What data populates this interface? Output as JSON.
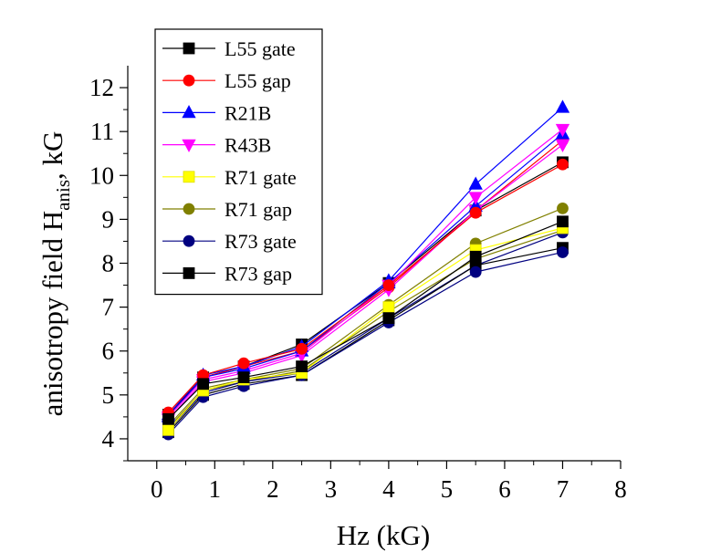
{
  "chart_data": {
    "type": "line",
    "xlabel": "Hz (kG)",
    "ylabel": {
      "main": "anisotropy field H",
      "sub": "anis",
      "suffix": ", kG"
    },
    "xlim": [
      -0.5,
      8
    ],
    "ylim": [
      3.5,
      12.5
    ],
    "xticks": [
      "0",
      "1",
      "2",
      "3",
      "4",
      "5",
      "6",
      "7",
      "8"
    ],
    "yticks": [
      "4",
      "5",
      "6",
      "7",
      "8",
      "9",
      "10",
      "11",
      "12"
    ],
    "grid": false,
    "legend_position": "top-left",
    "x": [
      0.2,
      0.8,
      1.5,
      2.5,
      4.0,
      5.5,
      7.0
    ],
    "series": [
      {
        "name": "L55 gate",
        "color": "#000000",
        "marker": "square",
        "values": [
          4.45,
          5.25,
          5.4,
          5.65,
          6.75,
          8.15,
          8.95
        ]
      },
      {
        "name": "L55 gap",
        "color": "#ff0000",
        "marker": "circle",
        "values": [
          4.6,
          5.45,
          5.72,
          6.05,
          7.5,
          9.15,
          10.25
        ]
      },
      {
        "name": "R21B",
        "color": "#0000ff",
        "marker": "triangle-up",
        "values": [
          4.55,
          5.45,
          5.65,
          6.1,
          7.6,
          9.8,
          11.55
        ]
      },
      {
        "name": "R43B",
        "color": "#ff00ff",
        "marker": "triangle-down",
        "values": [
          4.5,
          5.35,
          5.55,
          5.95,
          7.5,
          9.5,
          11.05
        ]
      },
      {
        "name": "R71 gate",
        "color": "#ffff00",
        "marker": "square",
        "values": [
          4.2,
          5.1,
          5.35,
          5.5,
          7.0,
          8.3,
          8.8
        ]
      },
      {
        "name": "R71 gap",
        "color": "#808000",
        "marker": "circle",
        "values": [
          4.3,
          5.15,
          5.35,
          5.6,
          7.05,
          8.45,
          9.25
        ]
      },
      {
        "name": "R73 gate",
        "color": "#000080",
        "marker": "circle",
        "values": [
          4.1,
          4.95,
          5.2,
          5.45,
          6.65,
          7.8,
          8.25
        ]
      },
      {
        "name": "R73 gap",
        "color": "#000000",
        "marker": "square",
        "values": [
          4.15,
          5.0,
          5.25,
          5.45,
          6.7,
          7.95,
          8.35
        ]
      },
      {
        "name": "",
        "color": "#0000ff",
        "marker": "triangle-up",
        "values": [
          4.5,
          5.4,
          5.6,
          6.0,
          7.55,
          9.3,
          10.95
        ]
      },
      {
        "name": "",
        "color": "#ff00ff",
        "marker": "triangle-down",
        "values": [
          4.45,
          5.3,
          5.5,
          5.9,
          7.4,
          9.2,
          10.7
        ]
      },
      {
        "name": "",
        "color": "#ff0000",
        "marker": "circle",
        "values": [
          4.5,
          5.4,
          5.65,
          6.0,
          7.45,
          9.2,
          10.8
        ]
      },
      {
        "name": "",
        "color": "#000000",
        "marker": "square",
        "values": [
          4.55,
          5.4,
          5.65,
          6.15,
          7.55,
          9.2,
          10.3
        ]
      },
      {
        "name": "",
        "color": "#000080",
        "marker": "circle",
        "values": [
          4.2,
          5.05,
          5.3,
          5.5,
          6.75,
          7.95,
          8.7
        ]
      },
      {
        "name": "",
        "color": "#808000",
        "marker": "circle",
        "values": [
          4.25,
          5.1,
          5.3,
          5.55,
          6.9,
          8.1,
          8.75
        ]
      }
    ]
  }
}
